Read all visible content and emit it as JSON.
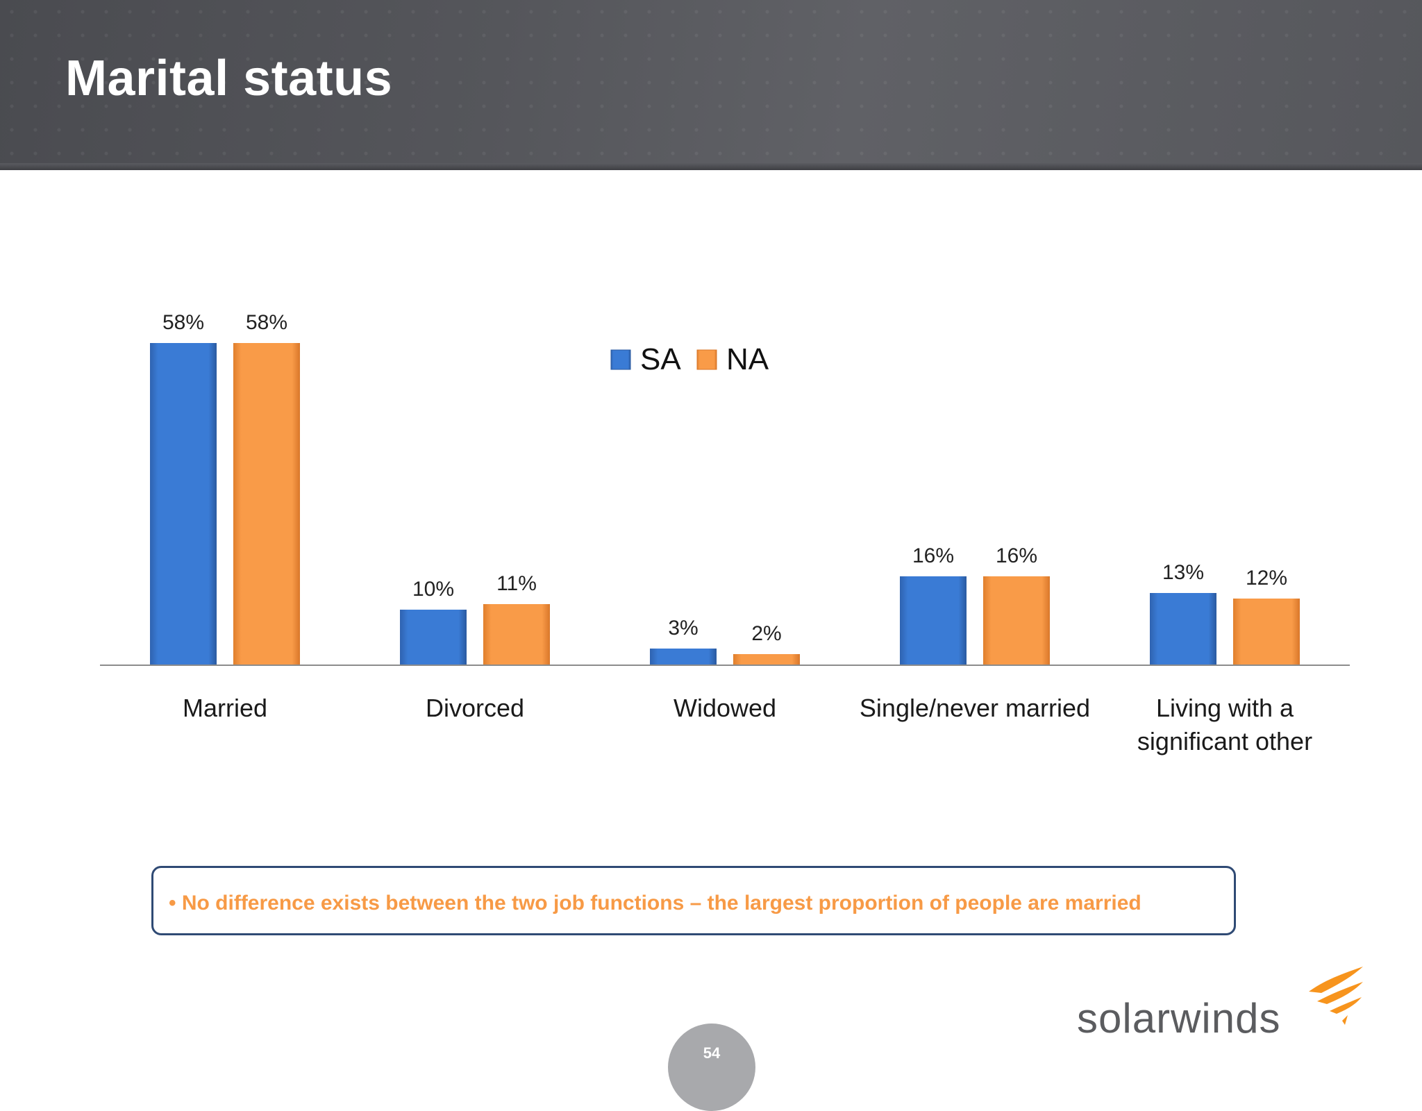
{
  "page": {
    "title": "Marital status",
    "page_number": "54",
    "logo_text": "solarwinds"
  },
  "callout": {
    "text": "• No difference exists between the two job functions – the largest proportion of people are married"
  },
  "colors": {
    "sa": "#3a7bd5",
    "na": "#f79a46",
    "callout_text": "#f79a46",
    "callout_border": "#2f4a74"
  },
  "chart_data": {
    "type": "bar",
    "categories": [
      "Married",
      "Divorced",
      "Widowed",
      "Single/never married",
      "Living with a significant other"
    ],
    "series": [
      {
        "name": "SA",
        "values": [
          58,
          10,
          3,
          16,
          13
        ],
        "labels": [
          "58%",
          "10%",
          "3%",
          "16%",
          "13%"
        ]
      },
      {
        "name": "NA",
        "values": [
          58,
          11,
          2,
          16,
          12
        ],
        "labels": [
          "58%",
          "11%",
          "2%",
          "16%",
          "12%"
        ]
      }
    ],
    "unit": "%",
    "ylim": [
      0,
      60
    ],
    "grid": false,
    "legend_position": "top-center"
  }
}
